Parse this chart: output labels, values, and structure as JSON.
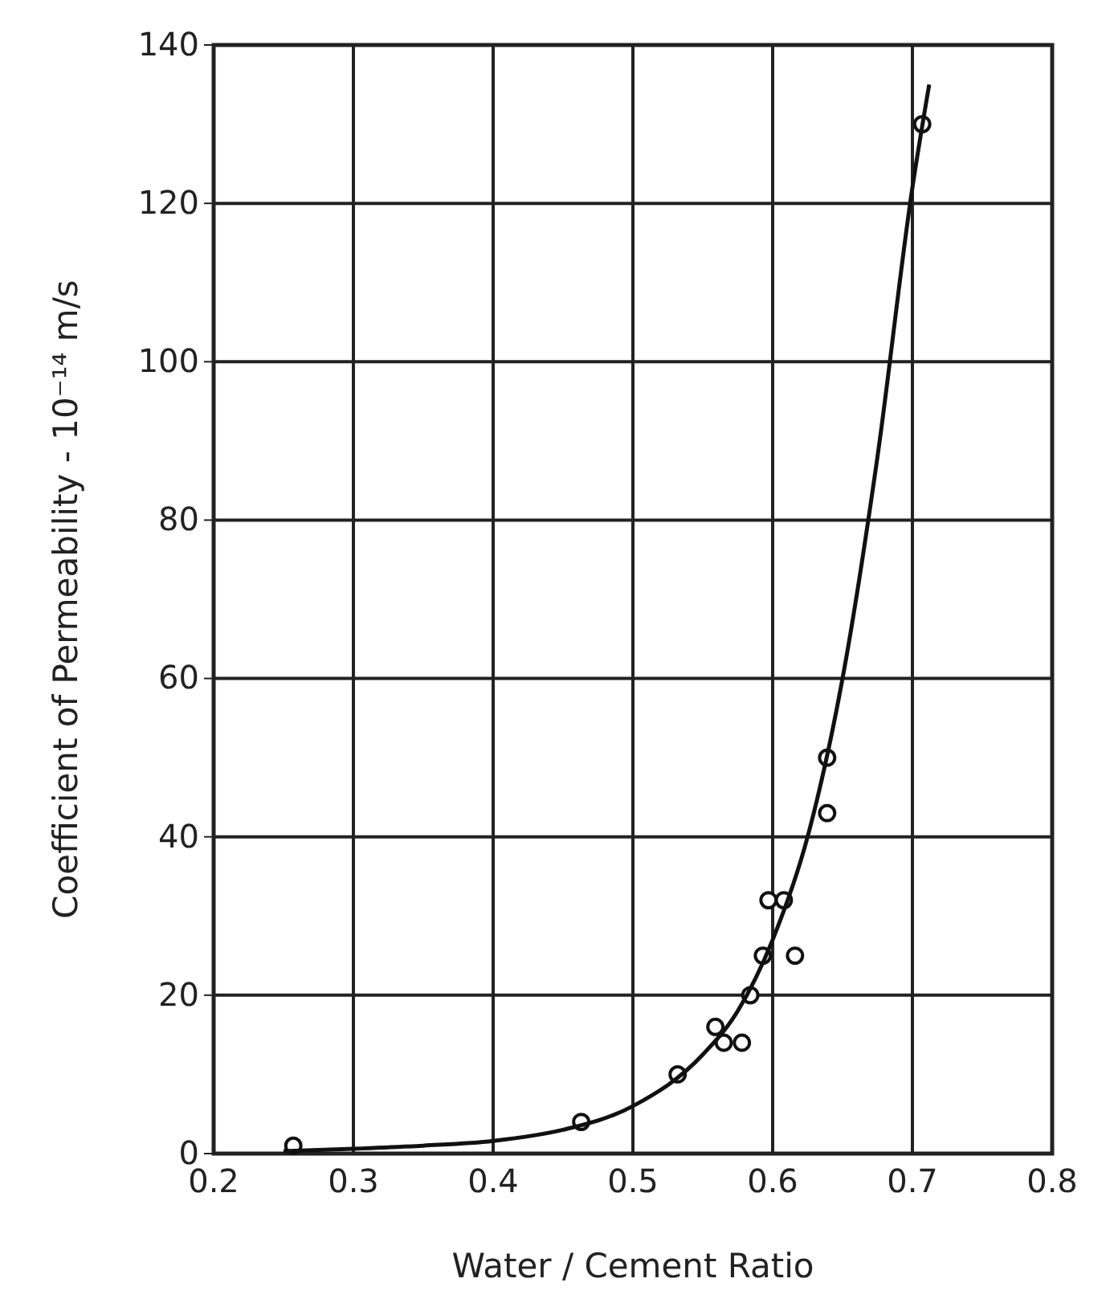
{
  "chart_data": {
    "type": "scatter",
    "xlabel": "Water / Cement Ratio",
    "ylabel": "Coefficient of Permeability - 10⁻¹⁴ m/s",
    "xlim": [
      0.2,
      0.8
    ],
    "ylim": [
      0,
      140
    ],
    "xticks": [
      0.2,
      0.3,
      0.4,
      0.5,
      0.6,
      0.7,
      0.8
    ],
    "yticks": [
      0,
      20,
      40,
      60,
      80,
      100,
      120,
      140
    ],
    "grid": true,
    "series": [
      {
        "color": "#111111",
        "marker": "circle",
        "x": [
          0.257,
          0.463,
          0.532,
          0.559,
          0.565,
          0.578,
          0.584,
          0.593,
          0.616,
          0.597,
          0.608,
          0.639,
          0.639,
          0.707
        ],
        "values": [
          1,
          4,
          10,
          16,
          14,
          14,
          20,
          25,
          25,
          32,
          32,
          43,
          50,
          130
        ]
      },
      {
        "type": "line",
        "marker": "none",
        "color": "#111111",
        "x": [
          0.25,
          0.3,
          0.35,
          0.4,
          0.45,
          0.5,
          0.55,
          0.575,
          0.6,
          0.625,
          0.65,
          0.675,
          0.7,
          0.712
        ],
        "values": [
          0.3,
          0.6,
          1,
          1.6,
          3,
          6,
          12.5,
          18,
          27,
          40,
          60,
          88,
          122,
          135
        ]
      }
    ]
  }
}
